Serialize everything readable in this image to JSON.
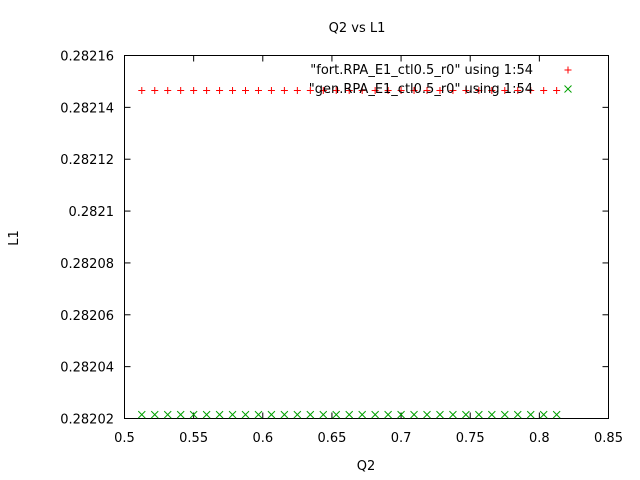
{
  "chart_data": {
    "type": "scatter",
    "title": "Q2 vs L1",
    "xlabel": "Q2",
    "ylabel": "L1",
    "xlim": [
      0.5,
      0.85
    ],
    "ylim": [
      0.28202,
      0.28216
    ],
    "xticks": [
      0.5,
      0.55,
      0.6,
      0.65,
      0.7,
      0.75,
      0.8,
      0.85
    ],
    "xtick_labels": [
      "0.5",
      "0.55",
      "0.6",
      "0.65",
      "0.7",
      "0.75",
      "0.8",
      "0.85"
    ],
    "yticks": [
      0.28202,
      0.28204,
      0.28206,
      0.28208,
      0.2821,
      0.28212,
      0.28214,
      0.28216
    ],
    "ytick_labels": [
      "0.28202",
      "0.28204",
      "0.28206",
      "0.28208",
      "0.2821",
      "0.28212",
      "0.28214",
      "0.28216"
    ],
    "grid": false,
    "legend_position": "top-right",
    "series": [
      {
        "name": "\"fort.RPA_E1_ctl0.5_r0\" using 1:54",
        "marker": "plus",
        "color": "#ff0000",
        "x_start": 0.5125,
        "x_end": 0.8125,
        "x_step": 0.009375,
        "y": 0.2821465
      },
      {
        "name": "\"gen.RPA_E1_ctl0.5_r0\" using 1:54",
        "marker": "cross",
        "color": "#00a000",
        "x_start": 0.5125,
        "x_end": 0.8125,
        "x_step": 0.009375,
        "y": 0.2820215
      }
    ]
  }
}
